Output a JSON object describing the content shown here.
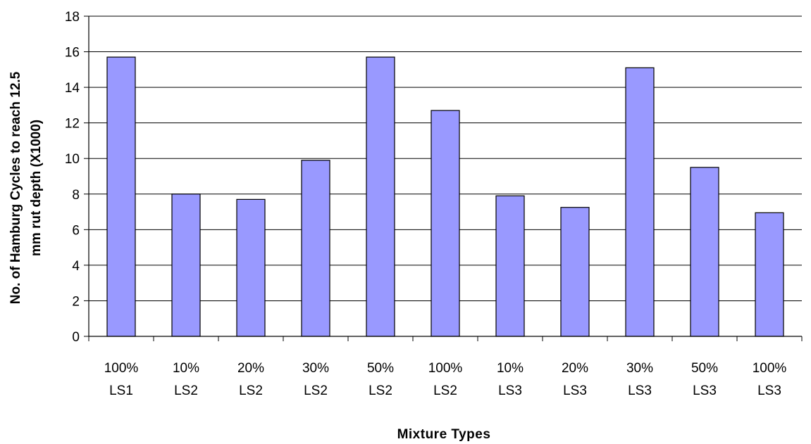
{
  "chart_data": {
    "type": "bar",
    "categories": [
      [
        "100%",
        "LS1"
      ],
      [
        "10%",
        "LS2"
      ],
      [
        "20%",
        "LS2"
      ],
      [
        "30%",
        "LS2"
      ],
      [
        "50%",
        "LS2"
      ],
      [
        "100%",
        "LS2"
      ],
      [
        "10%",
        "LS3"
      ],
      [
        "20%",
        "LS3"
      ],
      [
        "30%",
        "LS3"
      ],
      [
        "50%",
        "LS3"
      ],
      [
        "100%",
        "LS3"
      ]
    ],
    "values": [
      15.7,
      8.0,
      7.7,
      9.9,
      15.7,
      12.7,
      7.9,
      7.25,
      15.1,
      9.5,
      6.95
    ],
    "xlabel": "Mixture Types",
    "ylabel": [
      "No. of Hamburg Cycles to reach 12.5",
      "mm rut depth (X1000)"
    ],
    "ylim": [
      0,
      18
    ],
    "yticks": [
      0,
      2,
      4,
      6,
      8,
      10,
      12,
      14,
      16,
      18
    ],
    "grid": true,
    "legend": "none",
    "colors": {
      "bar_fill": "#9999ff",
      "bar_stroke": "#000000",
      "grid": "#000000",
      "axis": "#000000",
      "background": "#ffffff"
    }
  }
}
